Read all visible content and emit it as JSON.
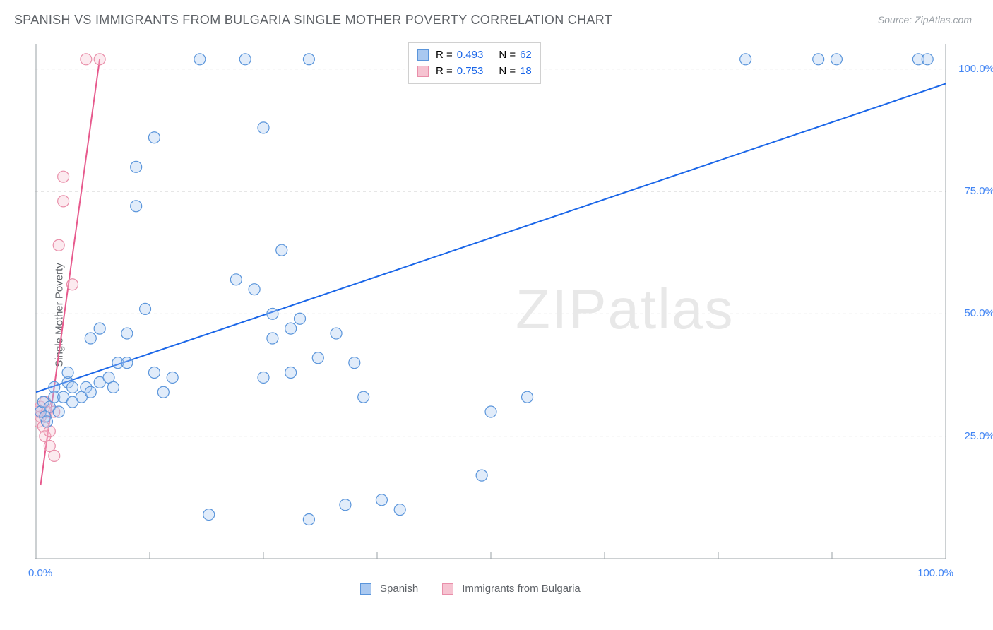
{
  "title": "SPANISH VS IMMIGRANTS FROM BULGARIA SINGLE MOTHER POVERTY CORRELATION CHART",
  "source_label": "Source: ZipAtlas.com",
  "watermark": "ZIPatlas",
  "chart": {
    "type": "scatter",
    "ylabel": "Single Mother Poverty",
    "xlim": [
      0,
      100
    ],
    "ylim": [
      0,
      105
    ],
    "yticks": [
      25,
      50,
      75,
      100
    ],
    "ytick_labels": [
      "25.0%",
      "50.0%",
      "75.0%",
      "100.0%"
    ],
    "xtick_labels": {
      "min": "0.0%",
      "max": "100.0%"
    },
    "xtick_positions": [
      12.5,
      25,
      37.5,
      50,
      62.5,
      75,
      87.5
    ],
    "background_color": "#ffffff",
    "grid_color": "#cccccc",
    "axis_color": "#9aa0a6",
    "tick_label_color": "#4285f4",
    "title_fontsize": 18,
    "label_fontsize": 15,
    "marker_radius": 8,
    "marker_fill_opacity": 0.35,
    "marker_stroke_width": 1.2,
    "line_width": 2,
    "series": [
      {
        "name": "Spanish",
        "short": "spanish",
        "color_fill": "#a9c8f0",
        "color_stroke": "#5a95db",
        "line_color": "#1a66e8",
        "R": "0.493",
        "N": "62",
        "trend": {
          "x1": 0,
          "y1": 34,
          "x2": 100,
          "y2": 97
        },
        "points": [
          [
            0.5,
            30
          ],
          [
            0.8,
            32
          ],
          [
            1,
            29
          ],
          [
            1.5,
            31
          ],
          [
            1.2,
            28
          ],
          [
            2,
            33
          ],
          [
            2,
            35
          ],
          [
            2.5,
            30
          ],
          [
            3,
            33
          ],
          [
            3.5,
            36
          ],
          [
            3.5,
            38
          ],
          [
            4,
            35
          ],
          [
            4,
            32
          ],
          [
            5,
            33
          ],
          [
            5.5,
            35
          ],
          [
            6,
            34
          ],
          [
            6,
            45
          ],
          [
            7,
            36
          ],
          [
            7,
            47
          ],
          [
            8,
            37
          ],
          [
            8.5,
            35
          ],
          [
            9,
            40
          ],
          [
            10,
            40
          ],
          [
            10,
            46
          ],
          [
            11,
            80
          ],
          [
            11,
            72
          ],
          [
            12,
            51
          ],
          [
            13,
            38
          ],
          [
            13,
            86
          ],
          [
            14,
            34
          ],
          [
            15,
            37
          ],
          [
            18,
            102
          ],
          [
            19,
            9
          ],
          [
            22,
            57
          ],
          [
            23,
            102
          ],
          [
            24,
            55
          ],
          [
            25,
            37
          ],
          [
            25,
            88
          ],
          [
            26,
            50
          ],
          [
            26,
            45
          ],
          [
            27,
            63
          ],
          [
            28,
            38
          ],
          [
            28,
            47
          ],
          [
            29,
            49
          ],
          [
            30,
            8
          ],
          [
            30,
            102
          ],
          [
            31,
            41
          ],
          [
            33,
            46
          ],
          [
            34,
            11
          ],
          [
            35,
            40
          ],
          [
            36,
            33
          ],
          [
            38,
            12
          ],
          [
            40,
            10
          ],
          [
            49,
            17
          ],
          [
            50,
            30
          ],
          [
            54,
            102
          ],
          [
            54,
            33
          ],
          [
            78,
            102
          ],
          [
            86,
            102
          ],
          [
            88,
            102
          ],
          [
            97,
            102
          ],
          [
            98,
            102
          ]
        ]
      },
      {
        "name": "Immigrants from Bulgaria",
        "short": "bulgaria",
        "color_fill": "#f6c3d1",
        "color_stroke": "#e98faa",
        "line_color": "#e75a8d",
        "R": "0.753",
        "N": "18",
        "trend": {
          "x1": 0.5,
          "y1": 15,
          "x2": 7,
          "y2": 102
        },
        "points": [
          [
            0.2,
            30
          ],
          [
            0.3,
            28
          ],
          [
            0.5,
            29
          ],
          [
            0.5,
            31
          ],
          [
            0.8,
            27
          ],
          [
            1,
            25
          ],
          [
            1,
            32
          ],
          [
            1.2,
            30
          ],
          [
            1.5,
            26
          ],
          [
            1.5,
            23
          ],
          [
            2,
            21
          ],
          [
            2,
            30
          ],
          [
            2.5,
            64
          ],
          [
            3,
            73
          ],
          [
            3,
            78
          ],
          [
            4,
            56
          ],
          [
            5.5,
            102
          ],
          [
            7,
            102
          ]
        ]
      }
    ]
  },
  "legend_top": {
    "r_label": "R =",
    "n_label": "N ="
  },
  "legend_bottom": {
    "items": [
      "Spanish",
      "Immigrants from Bulgaria"
    ]
  }
}
